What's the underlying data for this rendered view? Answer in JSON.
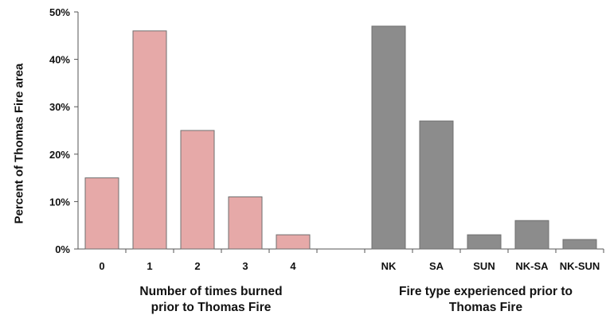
{
  "chart_data": {
    "type": "bar",
    "ylabel": "Percent of Thomas Fire area",
    "ylim": [
      0,
      50
    ],
    "yticks": [
      "0%",
      "10%",
      "20%",
      "30%",
      "40%",
      "50%"
    ],
    "grid": false,
    "groups": [
      {
        "xlabel_line1": "Number of times burned",
        "xlabel_line2": "prior to Thomas Fire",
        "color": "#e6a9a8",
        "categories": [
          "0",
          "1",
          "2",
          "3",
          "4"
        ],
        "values": [
          15,
          46,
          25,
          11,
          3
        ]
      },
      {
        "xlabel_line1": "Fire type experienced prior to",
        "xlabel_line2": "Thomas Fire",
        "color": "#8c8c8c",
        "categories": [
          "NK",
          "SA",
          "SUN",
          "NK-SA",
          "NK-SUN"
        ],
        "values": [
          47,
          27,
          3,
          6,
          2
        ]
      }
    ]
  }
}
